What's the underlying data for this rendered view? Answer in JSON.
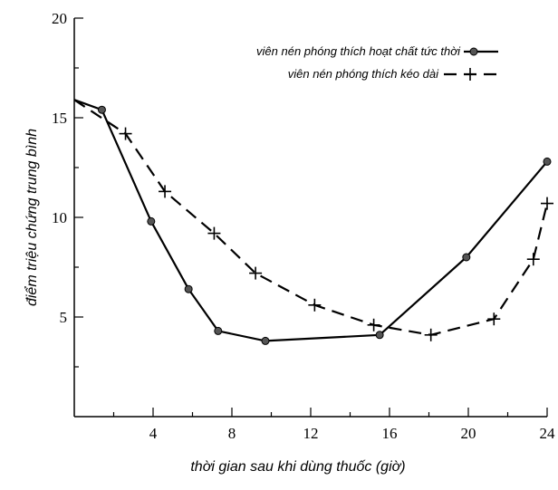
{
  "chart_data": {
    "type": "line",
    "title": "",
    "xlabel": "thời gian sau khi dùng thuốc (giờ)",
    "ylabel": "điểm triệu chứng trung bình",
    "xlim": [
      0,
      24
    ],
    "ylim": [
      0,
      20
    ],
    "xticks": [
      4,
      8,
      12,
      16,
      20,
      24
    ],
    "yticks": [
      5,
      10,
      15,
      20
    ],
    "legend_position": "top-right",
    "grid": false,
    "series": [
      {
        "name": "viên nén phóng thích hoạt chất tức thời",
        "style": "solid",
        "marker": "dot",
        "x": [
          0,
          1.4,
          3.9,
          5.8,
          7.3,
          9.7,
          15.5,
          19.9,
          24
        ],
        "y": [
          15.9,
          15.4,
          9.8,
          6.4,
          4.3,
          3.8,
          4.1,
          8.0,
          12.8
        ]
      },
      {
        "name": "viên nén phóng thích kéo dài",
        "style": "dashed",
        "marker": "plus",
        "x": [
          0,
          2.6,
          4.6,
          7.1,
          9.2,
          12.2,
          15.2,
          18.1,
          21.3,
          23.3,
          24
        ],
        "y": [
          15.9,
          14.2,
          11.3,
          9.2,
          7.2,
          5.6,
          4.6,
          4.1,
          4.9,
          7.9,
          10.7
        ]
      }
    ]
  },
  "colors": {
    "line": "#000000",
    "marker_fill": "#555555",
    "background": "#ffffff"
  }
}
